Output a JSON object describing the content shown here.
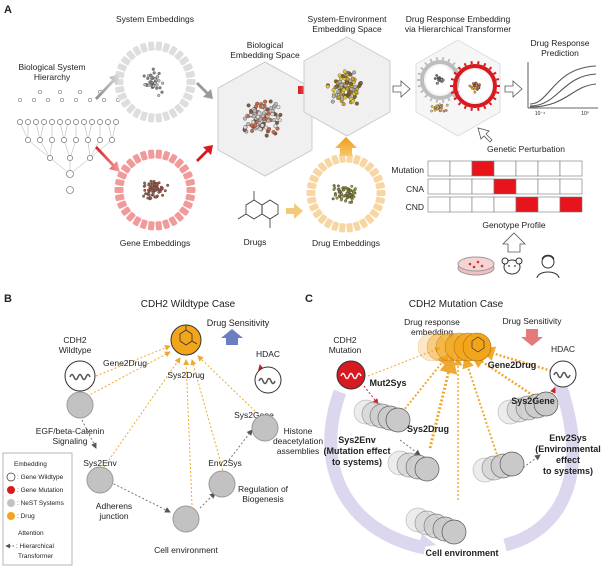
{
  "panelA": {
    "letter": "A",
    "hierarchy": [
      "Biological System",
      "Hierarchy"
    ],
    "system_emb": "System Embeddings",
    "bio_space": [
      "Biological",
      "Embedding Space"
    ],
    "sys_env": [
      "System-Environment",
      "Embedding Space"
    ],
    "drug_resp": [
      "Drug Response Embedding",
      "via Hierarchical Transformer"
    ],
    "prediction": [
      "Drug Response",
      "Prediction"
    ],
    "x_tick_a": "10⁻⁴",
    "x_tick_b": "10⁰",
    "gene_emb": "Gene Embeddings",
    "drugs": "Drugs",
    "drug_emb": "Drug Embeddings",
    "genetic_pert": "Genetic Perturbation",
    "rows": [
      "Mutation",
      "CNA",
      "CND"
    ],
    "genotype": "Genotype Profile",
    "matrix_color": "#e8141b"
  },
  "panelB": {
    "letter": "B",
    "title": "CDH2 Wildtype Case",
    "cdh2": [
      "CDH2",
      "Wildtype"
    ],
    "gene2drug": "Gene2Drug",
    "drug_sens": "Drug Sensitivity",
    "hdac": "HDAC",
    "sys2drug": "Sys2Drug",
    "egf": [
      "EGF/beta-Catenin",
      "Signaling"
    ],
    "sys2gene": "Sys2Gene",
    "sys2env": "Sys2Env",
    "histone": [
      "Histone",
      "deacetylation",
      "assemblies"
    ],
    "env2sys": "Env2Sys",
    "adherens": [
      "Adherens",
      "junction"
    ],
    "biogenesis": [
      "Regulation of",
      "Biogenesis"
    ],
    "cell_env": "Cell environment"
  },
  "legend": {
    "title": "Embedding",
    "items": [
      ": Gene Wildtype",
      ": Gene Mutation",
      ": NeST Systems",
      ": Drug"
    ],
    "attention_title": "Attention",
    "attention": [
      ": Hierarchical",
      "Transformer"
    ]
  },
  "panelC": {
    "letter": "C",
    "title": "CDH2 Mutation Case",
    "cdh2": [
      "CDH2",
      "Mutation"
    ],
    "embedding": [
      "Drug response",
      "embedding"
    ],
    "drug_sens": "Drug Sensitivity",
    "hdac": "HDAC",
    "mut2sys": "Mut2Sys",
    "gene2drug": "Gene2Drug",
    "sys2gene": "Sys2Gene",
    "sys2drug": "Sys2Drug",
    "sys2env": [
      "Sys2Env",
      "(Mutation effect",
      "to systems)"
    ],
    "env2sys": [
      "Env2Sys",
      "(Environmental",
      "effect",
      "to systems)"
    ],
    "cell_env": "Cell environment"
  },
  "colors": {
    "wildtype": "#ffffff",
    "mutation": "#d71920",
    "system": "#bdbdbd",
    "drug": "#f2a51a",
    "dot_line": "#f0a830",
    "sens_up": "#6c7ec2",
    "sens_down": "#e57a7a",
    "arc": "#dcd6ee"
  }
}
